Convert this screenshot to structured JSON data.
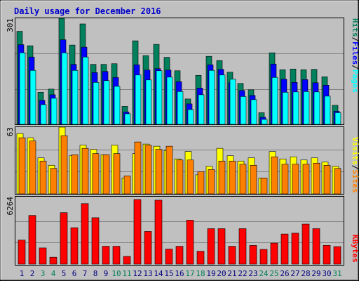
{
  "title": "Daily usage for December 2016",
  "colors": {
    "hits": "#00805c",
    "files": "#0000ff",
    "pages": "#00ffff",
    "visits": "#ffff00",
    "sites": "#ff8000",
    "kbytes": "#ff0000",
    "weekend": "#00805c",
    "weekday": "#000080",
    "background": "#c0c0c0"
  },
  "legends": {
    "top": [
      {
        "text": "Hits",
        "color": "#00805c"
      },
      {
        "text": "/",
        "color": "#000000"
      },
      {
        "text": "Files",
        "color": "#0000ff"
      },
      {
        "text": "/",
        "color": "#000000"
      },
      {
        "text": "Pages",
        "color": "#00ffff"
      }
    ],
    "middle": [
      {
        "text": "Visits",
        "color": "#ffff00"
      },
      {
        "text": "/",
        "color": "#000000"
      },
      {
        "text": "Sites",
        "color": "#ff8000"
      }
    ],
    "bottom": [
      {
        "text": "KBytes",
        "color": "#ff0000"
      }
    ]
  },
  "axis_max_labels": {
    "top": "301",
    "middle": "63",
    "bottom": "6264"
  },
  "chart_data": [
    {
      "type": "bar",
      "title": "Daily usage for December 2016",
      "categories": [
        "1",
        "2",
        "3",
        "4",
        "5",
        "6",
        "7",
        "8",
        "9",
        "10",
        "11",
        "12",
        "13",
        "14",
        "15",
        "16",
        "17",
        "18",
        "19",
        "20",
        "21",
        "22",
        "23",
        "24",
        "25",
        "26",
        "27",
        "28",
        "29",
        "30",
        "31"
      ],
      "weekend_days": [
        "3",
        "4",
        "10",
        "11",
        "17",
        "18",
        "24",
        "25",
        "31"
      ],
      "ylim": [
        0,
        301
      ],
      "series": [
        {
          "name": "Hits",
          "values": [
            264,
            223,
            91,
            100,
            301,
            225,
            285,
            170,
            170,
            172,
            51,
            237,
            195,
            227,
            190,
            152,
            72,
            139,
            193,
            181,
            148,
            116,
            98,
            33,
            203,
            155,
            157,
            155,
            156,
            135,
            54
          ]
        },
        {
          "name": "Files",
          "values": [
            226,
            191,
            68,
            84,
            240,
            170,
            219,
            147,
            150,
            133,
            35,
            169,
            154,
            158,
            154,
            121,
            58,
            103,
            169,
            156,
            118,
            96,
            82,
            20,
            171,
            128,
            119,
            127,
            118,
            111,
            37
          ]
        },
        {
          "name": "Pages",
          "values": [
            203,
            153,
            56,
            74,
            203,
            153,
            191,
            119,
            124,
            108,
            30,
            140,
            126,
            152,
            134,
            93,
            42,
            84,
            153,
            140,
            128,
            79,
            70,
            14,
            133,
            91,
            92,
            93,
            92,
            80,
            33
          ]
        }
      ]
    },
    {
      "type": "bar",
      "categories": [
        "1",
        "2",
        "3",
        "4",
        "5",
        "6",
        "7",
        "8",
        "9",
        "10",
        "11",
        "12",
        "13",
        "14",
        "15",
        "16",
        "17",
        "18",
        "19",
        "20",
        "21",
        "22",
        "23",
        "24",
        "25",
        "26",
        "27",
        "28",
        "29",
        "30",
        "31"
      ],
      "ylim": [
        0,
        63
      ],
      "series": [
        {
          "name": "Visits",
          "values": [
            57,
            53,
            34,
            27,
            63,
            36,
            46,
            42,
            37,
            46,
            15,
            38,
            47,
            45,
            41,
            33,
            40,
            18,
            26,
            43,
            36,
            31,
            34,
            15,
            40,
            33,
            35,
            32,
            34,
            30,
            26
          ]
        },
        {
          "name": "Sites",
          "values": [
            53,
            50,
            31,
            24,
            55,
            37,
            43,
            38,
            37,
            38,
            17,
            49,
            46,
            42,
            45,
            32,
            32,
            21,
            23,
            31,
            31,
            28,
            27,
            15,
            35,
            28,
            28,
            28,
            29,
            27,
            24
          ]
        }
      ]
    },
    {
      "type": "bar",
      "categories": [
        "1",
        "2",
        "3",
        "4",
        "5",
        "6",
        "7",
        "8",
        "9",
        "10",
        "11",
        "12",
        "13",
        "14",
        "15",
        "16",
        "17",
        "18",
        "19",
        "20",
        "21",
        "22",
        "23",
        "24",
        "25",
        "26",
        "27",
        "28",
        "29",
        "30",
        "31"
      ],
      "ylim": [
        0,
        6264
      ],
      "series": [
        {
          "name": "KBytes",
          "values": [
            2330,
            4720,
            1570,
            670,
            4990,
            3530,
            5870,
            4500,
            1730,
            1730,
            750,
            6264,
            3170,
            6200,
            1460,
            1730,
            4260,
            1250,
            3440,
            3440,
            1730,
            3440,
            1810,
            1430,
            2040,
            2920,
            3000,
            3880,
            3440,
            1820,
            1700
          ]
        }
      ]
    }
  ]
}
